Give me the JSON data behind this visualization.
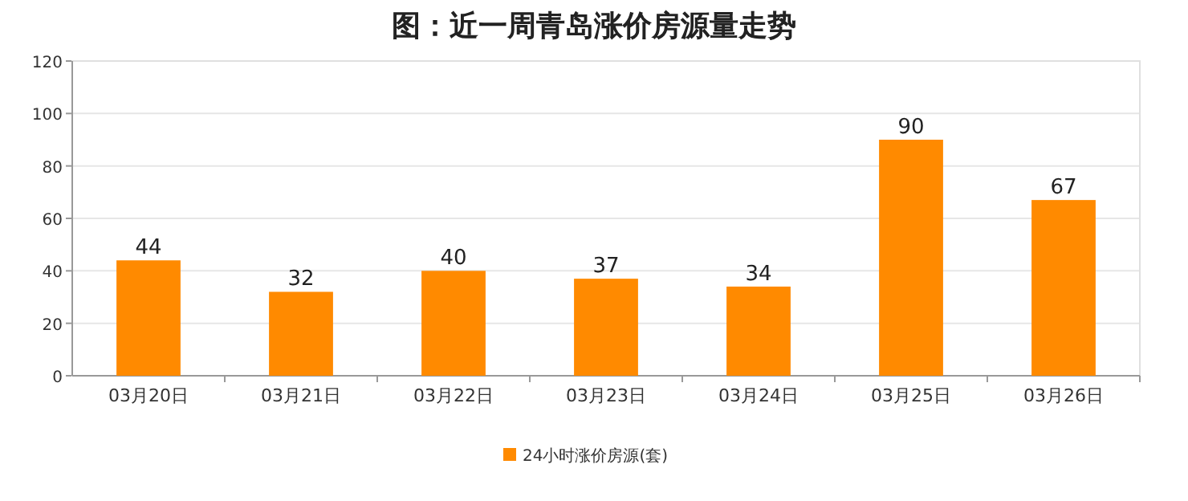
{
  "chart_data": {
    "type": "bar",
    "title": "图：近一周青岛涨价房源量走势",
    "categories": [
      "03月20日",
      "03月21日",
      "03月22日",
      "03月23日",
      "03月24日",
      "03月25日",
      "03月26日"
    ],
    "series": [
      {
        "name": "24小时涨价房源(套)",
        "color": "#ff8a00",
        "values": [
          44,
          32,
          40,
          37,
          34,
          90,
          67
        ]
      }
    ],
    "ylim": [
      0,
      120
    ],
    "yticks": [
      0,
      20,
      40,
      60,
      80,
      100,
      120
    ],
    "grid": "y",
    "legend": "bottom",
    "data_labels": true
  }
}
